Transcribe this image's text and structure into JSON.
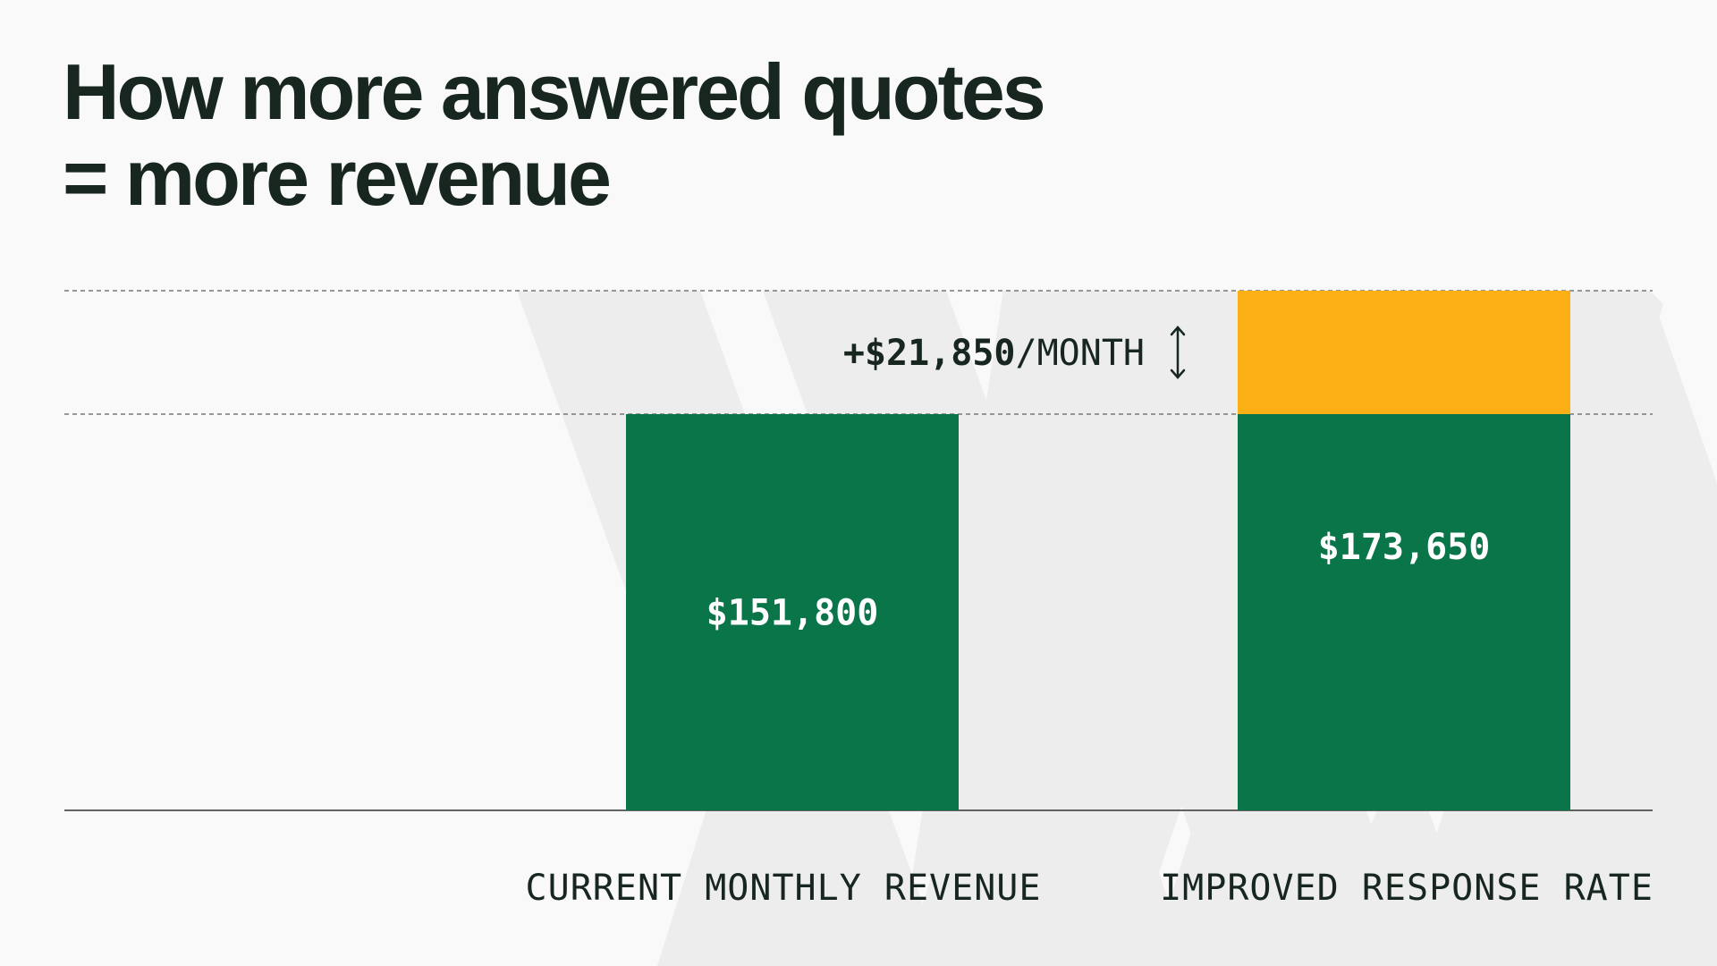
{
  "title": {
    "line1": "How more answered quotes",
    "line2": "= more revenue"
  },
  "colors": {
    "background": "#f9f9f9",
    "chevron": "#ecedec",
    "base_bar": "#0a7548",
    "increase_bar": "#fcb016",
    "text_dark": "#17261f",
    "bar_label": "#ffffff"
  },
  "chart_data": {
    "type": "bar",
    "stacked": true,
    "categories": [
      "CURRENT MONTHLY REVENUE",
      "IMPROVED RESPONSE RATE"
    ],
    "series": [
      {
        "values": [
          151800,
          151800
        ]
      },
      {
        "values": [
          0,
          21850
        ]
      }
    ],
    "totals": [
      151800,
      173650
    ],
    "data_labels": [
      "$151,800",
      "$173,650"
    ],
    "annotation": {
      "amount": "+$21,850",
      "unit": "/MONTH",
      "value": 21850
    },
    "reference_lines": [
      151800,
      173650
    ],
    "xlabel": "",
    "ylabel": "",
    "ylim": [
      0,
      173650
    ],
    "grid": false,
    "legend": "none"
  }
}
